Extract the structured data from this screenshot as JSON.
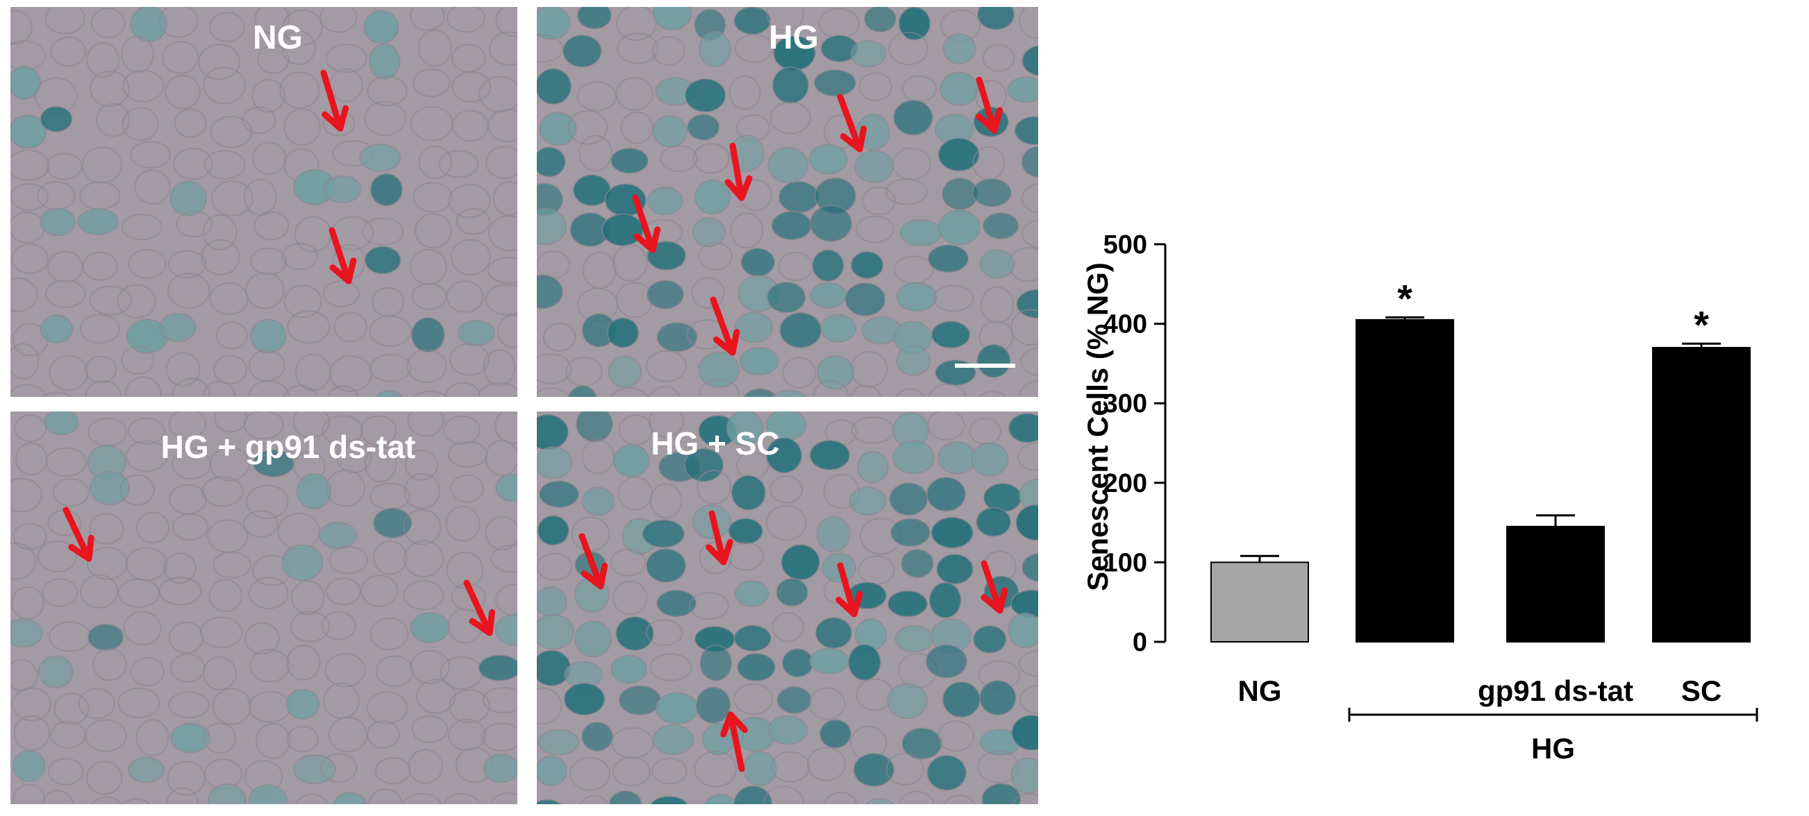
{
  "micrographs": {
    "panels": [
      {
        "label": "NG",
        "stain_level": "low"
      },
      {
        "label": "HG",
        "stain_level": "high"
      },
      {
        "label": "HG + gp91 ds-tat",
        "stain_level": "low"
      },
      {
        "label": "HG + SC",
        "stain_level": "high"
      }
    ],
    "colors": {
      "background": "#a39ba3",
      "cell_edge": "#8c8690",
      "stain_light": "#6f9fa3",
      "stain_dark": "#1f6f78",
      "arrow": "#e8141e",
      "scale_bar": "#ffffff"
    }
  },
  "chart_data": {
    "type": "bar",
    "categories": [
      "NG",
      "",
      "gp91 ds-tat",
      "SC"
    ],
    "values": [
      100,
      405,
      145,
      370
    ],
    "errors": [
      8,
      3,
      14,
      5
    ],
    "significance": [
      "",
      "*",
      "",
      "*"
    ],
    "bar_colors": [
      "#a6a6a6",
      "#000000",
      "#000000",
      "#000000"
    ],
    "group": {
      "label": "HG",
      "category_indices": [
        1,
        2,
        3
      ]
    },
    "title": "",
    "xlabel": "",
    "ylabel": "Senescent Cells (% NG)",
    "ylim": [
      0,
      500
    ],
    "yticks": [
      0,
      100,
      200,
      300,
      400,
      500
    ],
    "grid": false
  }
}
